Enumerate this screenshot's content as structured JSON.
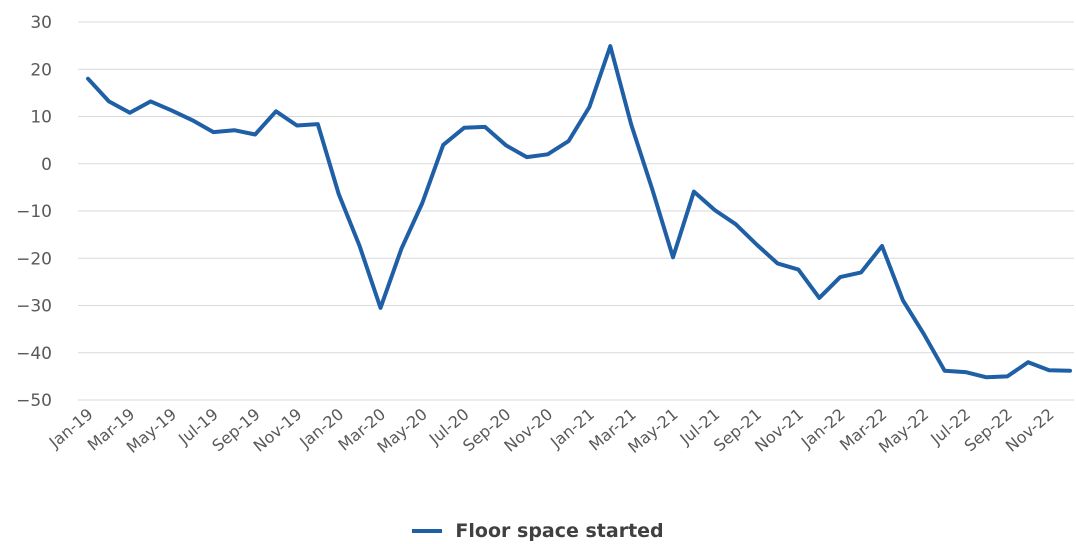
{
  "chart_data": {
    "type": "line",
    "title": "",
    "xlabel": "",
    "ylabel": "",
    "ylim": [
      -50,
      30
    ],
    "yticks": [
      30,
      20,
      10,
      0,
      -10,
      -20,
      -30,
      -40,
      -50
    ],
    "grid": true,
    "legend_position": "bottom",
    "colors": {
      "series": "#1f5fa6"
    },
    "x_tick_labels": [
      "Jan-19",
      "Mar-19",
      "May-19",
      "Jul-19",
      "Sep-19",
      "Nov-19",
      "Jan-20",
      "Mar-20",
      "May-20",
      "Jul-20",
      "Sep-20",
      "Nov-20",
      "Jan-21",
      "Mar-21",
      "May-21",
      "Jul-21",
      "Sep-21",
      "Nov-21",
      "Jan-22",
      "Mar-22",
      "May-22",
      "Jul-22",
      "Sep-22",
      "Nov-22"
    ],
    "x": [
      "Jan-19",
      "Feb-19",
      "Mar-19",
      "Apr-19",
      "May-19",
      "Jun-19",
      "Jul-19",
      "Aug-19",
      "Sep-19",
      "Oct-19",
      "Nov-19",
      "Dec-19",
      "Jan-20",
      "Feb-20",
      "Mar-20",
      "Apr-20",
      "May-20",
      "Jun-20",
      "Jul-20",
      "Aug-20",
      "Sep-20",
      "Oct-20",
      "Nov-20",
      "Dec-20",
      "Jan-21",
      "Feb-21",
      "Mar-21",
      "Apr-21",
      "May-21",
      "Jun-21",
      "Jul-21",
      "Aug-21",
      "Sep-21",
      "Oct-21",
      "Nov-21",
      "Dec-21",
      "Jan-22",
      "Feb-22",
      "Mar-22",
      "Apr-22",
      "May-22",
      "Jun-22",
      "Jul-22",
      "Aug-22",
      "Sep-22",
      "Oct-22",
      "Nov-22",
      "Dec-22"
    ],
    "series": [
      {
        "name": "Floor space started",
        "values": [
          18.0,
          13.2,
          10.8,
          13.2,
          11.3,
          9.2,
          6.7,
          7.1,
          6.2,
          11.1,
          8.1,
          8.4,
          -6.4,
          -17.4,
          -30.5,
          -18.0,
          -8.3,
          4.0,
          7.6,
          7.8,
          3.9,
          1.4,
          2.0,
          4.8,
          12.0,
          24.9,
          8.3,
          -5.3,
          -19.8,
          -5.9,
          -9.8,
          -12.8,
          -17.1,
          -21.1,
          -22.4,
          -28.4,
          -24.0,
          -23.0,
          -17.4,
          -28.9,
          -36.0,
          -43.8,
          -44.1,
          -45.2,
          -45.0,
          -42.0,
          -43.7,
          -43.8
        ]
      }
    ]
  }
}
